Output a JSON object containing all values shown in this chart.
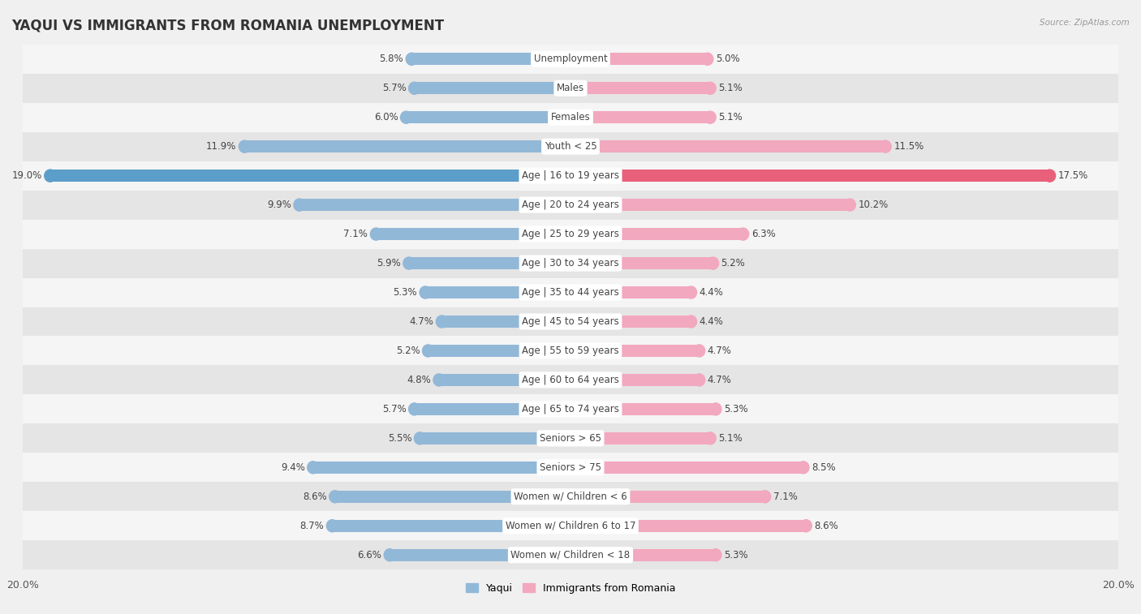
{
  "title": "YAQUI VS IMMIGRANTS FROM ROMANIA UNEMPLOYMENT",
  "source": "Source: ZipAtlas.com",
  "categories": [
    "Unemployment",
    "Males",
    "Females",
    "Youth < 25",
    "Age | 16 to 19 years",
    "Age | 20 to 24 years",
    "Age | 25 to 29 years",
    "Age | 30 to 34 years",
    "Age | 35 to 44 years",
    "Age | 45 to 54 years",
    "Age | 55 to 59 years",
    "Age | 60 to 64 years",
    "Age | 65 to 74 years",
    "Seniors > 65",
    "Seniors > 75",
    "Women w/ Children < 6",
    "Women w/ Children 6 to 17",
    "Women w/ Children < 18"
  ],
  "yaqui": [
    5.8,
    5.7,
    6.0,
    11.9,
    19.0,
    9.9,
    7.1,
    5.9,
    5.3,
    4.7,
    5.2,
    4.8,
    5.7,
    5.5,
    9.4,
    8.6,
    8.7,
    6.6
  ],
  "romania": [
    5.0,
    5.1,
    5.1,
    11.5,
    17.5,
    10.2,
    6.3,
    5.2,
    4.4,
    4.4,
    4.7,
    4.7,
    5.3,
    5.1,
    8.5,
    7.1,
    8.6,
    5.3
  ],
  "yaqui_color": "#92b8d8",
  "romania_color": "#f2a8be",
  "yaqui_highlight_color": "#5b9ec9",
  "romania_highlight_color": "#e8607a",
  "bg_color": "#f0f0f0",
  "row_bg_light": "#f5f5f5",
  "row_bg_dark": "#e5e5e5",
  "axis_limit": 20.0,
  "legend_yaqui": "Yaqui",
  "legend_romania": "Immigrants from Romania",
  "title_fontsize": 12,
  "label_fontsize": 8.5,
  "value_fontsize": 8.5
}
